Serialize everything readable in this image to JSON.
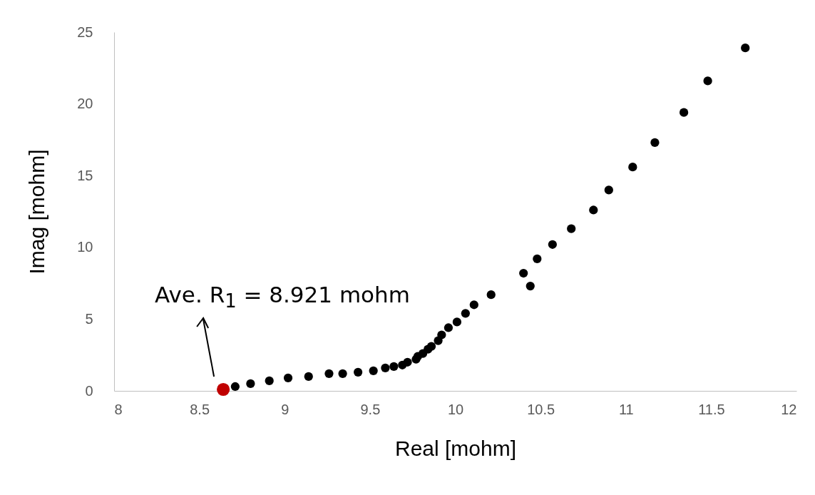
{
  "chart_data": {
    "type": "scatter",
    "xlabel": "Real [mohm]",
    "ylabel": "Imag [mohm]",
    "marker": "circle",
    "xlim": [
      8,
      12
    ],
    "ylim": [
      0,
      25
    ],
    "xticks": [
      8,
      8.5,
      9,
      9.5,
      10,
      10.5,
      11,
      11.5,
      12
    ],
    "yticks": [
      0,
      5,
      10,
      15,
      20,
      25
    ],
    "annotations": [
      "Ave. R$_{1}$ = 8.921 mohm"
    ],
    "series": [
      {
        "color": "#000000",
        "x": [
          8.71,
          8.8,
          8.91,
          9.02,
          9.14,
          9.26,
          9.34,
          9.43,
          9.52,
          9.59,
          9.64,
          9.69,
          9.72,
          9.77,
          9.78,
          9.81,
          9.84,
          9.86,
          9.9,
          9.92,
          9.96,
          10.01,
          10.06,
          10.11,
          10.21,
          10.4,
          10.44,
          10.48,
          10.57,
          10.68,
          10.81,
          10.9,
          11.04,
          11.17,
          11.34,
          11.48,
          11.7
        ],
        "values": [
          0.3,
          0.5,
          0.7,
          0.9,
          1.0,
          1.2,
          1.2,
          1.3,
          1.4,
          1.6,
          1.7,
          1.8,
          2.0,
          2.2,
          2.4,
          2.6,
          2.9,
          3.1,
          3.5,
          3.9,
          4.4,
          4.8,
          5.4,
          6.0,
          6.7,
          8.2,
          7.3,
          9.2,
          10.2,
          11.3,
          12.6,
          14.0,
          15.6,
          17.3,
          19.4,
          21.6,
          23.9
        ]
      },
      {
        "color": "#c00000",
        "x": [
          8.64
        ],
        "values": [
          0.1
        ]
      }
    ]
  }
}
